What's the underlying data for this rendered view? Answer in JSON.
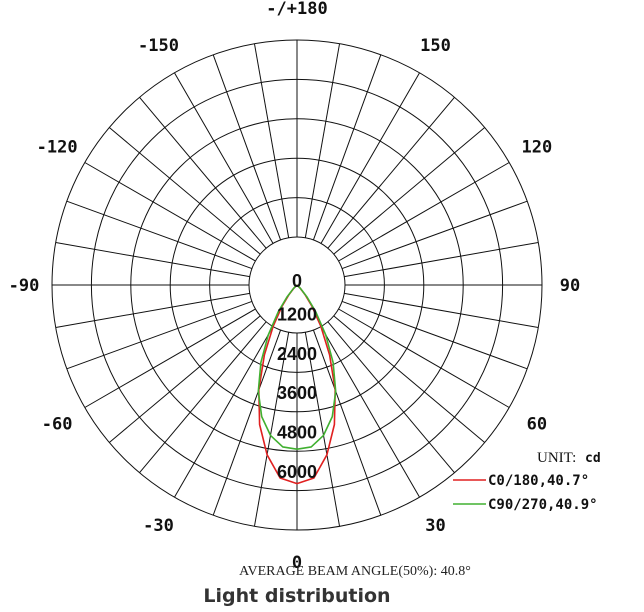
{
  "chart_data": {
    "type": "polar",
    "angle_labels": [
      {
        "text": "-/+180",
        "angle": 180
      },
      {
        "text": "-150",
        "angle": -150
      },
      {
        "text": "150",
        "angle": 150
      },
      {
        "text": "-120",
        "angle": -120
      },
      {
        "text": "120",
        "angle": 120
      },
      {
        "text": "-90",
        "angle": -90
      },
      {
        "text": "90",
        "angle": 90
      },
      {
        "text": "-60",
        "angle": -60
      },
      {
        "text": "60",
        "angle": 60
      },
      {
        "text": "-30",
        "angle": -30
      },
      {
        "text": "30",
        "angle": 30
      },
      {
        "text": "0",
        "angle": 0
      }
    ],
    "radial_ticks": [
      "0",
      "1200",
      "2400",
      "3600",
      "4800",
      "6000"
    ],
    "radial_max": 6000,
    "unit_prefix": "UNIT:",
    "unit": "cd",
    "series": [
      {
        "name": "C0/180,40.7°",
        "color": "#e02020",
        "angles": [
          0,
          5,
          10,
          15,
          20,
          25,
          30,
          35,
          40,
          45,
          50
        ],
        "values": [
          6050,
          5900,
          5250,
          4400,
          3400,
          2350,
          1450,
          800,
          380,
          130,
          0
        ]
      },
      {
        "name": "C90/270,40.9°",
        "color": "#40b030",
        "angles": [
          0,
          5,
          10,
          15,
          20,
          25,
          30,
          35,
          40,
          45,
          50
        ],
        "values": [
          5000,
          4950,
          4650,
          4150,
          3450,
          2600,
          1750,
          1000,
          480,
          160,
          0
        ]
      }
    ],
    "footnote": "AVERAGE BEAM ANGLE(50%): 40.8°",
    "caption": "Light distribution"
  }
}
